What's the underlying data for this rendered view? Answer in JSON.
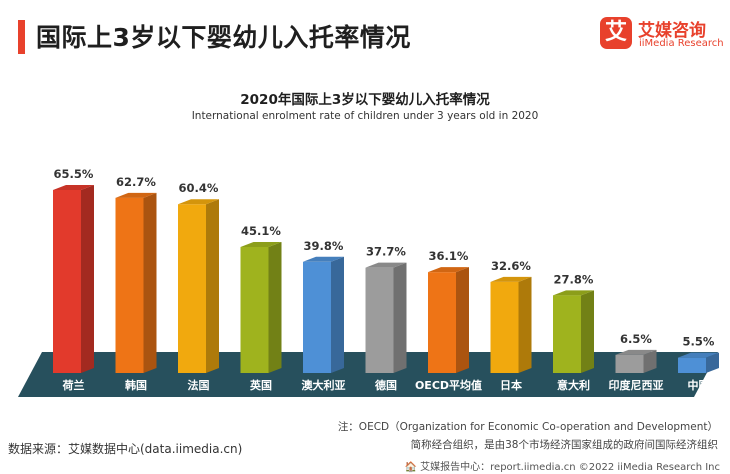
{
  "header": {
    "title": "国际上3岁以下婴幼儿入托率情况"
  },
  "logo": {
    "icon_glyph": "艾",
    "name_cn": "艾媒咨询",
    "name_en": "iiMedia Research"
  },
  "chart_data": {
    "type": "bar",
    "title": "2020年国际上3岁以下婴幼儿入托率情况",
    "subtitle": "International enrolment rate of children under 3 years old in 2020",
    "categories": [
      "荷兰",
      "韩国",
      "法国",
      "英国",
      "澳大利亚",
      "德国",
      "OECD平均值",
      "日本",
      "意大利",
      "印度尼西亚",
      "中国"
    ],
    "values": [
      65.5,
      62.7,
      60.4,
      45.1,
      39.8,
      37.7,
      36.1,
      32.6,
      27.8,
      6.5,
      5.5
    ],
    "value_labels": [
      "65.5%",
      "62.7%",
      "60.4%",
      "45.1%",
      "39.8%",
      "37.7%",
      "36.1%",
      "32.6%",
      "27.8%",
      "6.5%",
      "5.5%"
    ],
    "colors": [
      "#e23a2c",
      "#ee7416",
      "#f1a90e",
      "#9fb31e",
      "#4e90d6",
      "#9c9c9c",
      "#ee7416",
      "#f1a90e",
      "#9fb31e",
      "#9c9c9c",
      "#4e90d6"
    ],
    "ylim": [
      0,
      70
    ]
  },
  "notes": {
    "line1": "注：OECD（Organization for Economic Co-operation and Development）",
    "line2": "简称经合组织，是由38个市场经济国家组成的政府间国际经济组织"
  },
  "source": "数据来源：艾媒数据中心(data.iimedia.cn)",
  "footer": "🏠 艾媒报告中心：report.iimedia.cn   ©2022  iiMedia Research  Inc"
}
